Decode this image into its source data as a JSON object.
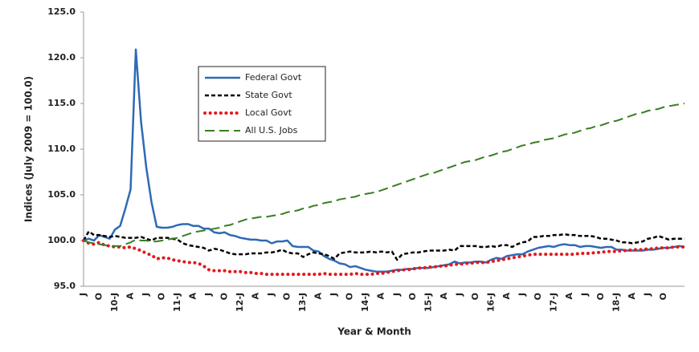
{
  "chart_data": {
    "type": "line",
    "y_label": "Indices (July 2009 = 100.0)",
    "x_label": "Year & Month",
    "categories": [
      "J",
      null,
      null,
      "O",
      null,
      null,
      "10-J",
      null,
      null,
      "A",
      null,
      null,
      "J",
      null,
      null,
      "O",
      null,
      null,
      "11-J",
      null,
      null,
      "A",
      null,
      null,
      "J",
      null,
      null,
      "O",
      null,
      null,
      "12-J",
      null,
      null,
      "A",
      null,
      null,
      "J",
      null,
      null,
      "O",
      null,
      null,
      "13-J",
      null,
      null,
      "A",
      null,
      null,
      "J",
      null,
      null,
      "O",
      null,
      null,
      "14-J",
      null,
      null,
      "A",
      null,
      null,
      "J",
      null,
      null,
      "O",
      null,
      null,
      "15-J",
      null,
      null,
      "A",
      null,
      null,
      "J",
      null,
      null,
      "O",
      null,
      null,
      "16-J",
      null,
      null,
      "A",
      null,
      null,
      "J",
      null,
      null,
      "O",
      null,
      null,
      "17-J",
      null,
      null,
      "A",
      null,
      null,
      "J",
      null,
      null,
      "O",
      null,
      null,
      "18-J",
      null,
      null,
      "A",
      null,
      null,
      "J",
      null,
      null,
      "O",
      null,
      null,
      null,
      null
    ],
    "series": [
      {
        "name": "Federal Govt",
        "color": "#2e6ab5",
        "style": "solid",
        "values": [
          100,
          100.2,
          100,
          100.6,
          100.4,
          100.2,
          101.2,
          101.6,
          103.5,
          105.6,
          120.9,
          113,
          108,
          104.2,
          101.5,
          101.4,
          101.4,
          101.5,
          101.7,
          101.8,
          101.8,
          101.6,
          101.6,
          101.3,
          101.3,
          100.9,
          100.8,
          100.9,
          100.6,
          100.5,
          100.3,
          100.2,
          100.1,
          100.1,
          100.0,
          100.0,
          99.7,
          99.9,
          99.9,
          100.0,
          99.4,
          99.3,
          99.3,
          99.3,
          98.9,
          98.8,
          98.3,
          98.0,
          97.8,
          97.5,
          97.4,
          97.1,
          97.2,
          97.0,
          96.8,
          96.7,
          96.6,
          96.6,
          96.6,
          96.7,
          96.8,
          96.8,
          96.9,
          96.9,
          97.0,
          97.0,
          97.0,
          97.1,
          97.2,
          97.3,
          97.4,
          97.7,
          97.5,
          97.6,
          97.6,
          97.7,
          97.7,
          97.6,
          97.9,
          98.1,
          98.0,
          98.3,
          98.4,
          98.5,
          98.5,
          98.8,
          99.0,
          99.2,
          99.3,
          99.4,
          99.3,
          99.5,
          99.6,
          99.5,
          99.5,
          99.3,
          99.4,
          99.4,
          99.3,
          99.2,
          99.3,
          99.3,
          99.0,
          99.0,
          98.9,
          98.9,
          98.9,
          98.9,
          99.0,
          99.0,
          99.1,
          99.2,
          99.2,
          99.3,
          99.4,
          99.3
        ]
      },
      {
        "name": "State Govt",
        "color": "#000000",
        "style": "dashed",
        "values": [
          100,
          101,
          100.6,
          100.6,
          100.5,
          100.4,
          100.5,
          100.4,
          100.3,
          100.3,
          100.3,
          100.4,
          100.2,
          100.0,
          100.3,
          100.3,
          100.3,
          100.2,
          100.1,
          99.7,
          99.5,
          99.4,
          99.3,
          99.2,
          98.9,
          99.1,
          99.0,
          98.8,
          98.6,
          98.5,
          98.5,
          98.5,
          98.6,
          98.6,
          98.6,
          98.7,
          98.7,
          98.8,
          99.0,
          98.7,
          98.6,
          98.6,
          98.2,
          98.5,
          98.7,
          98.6,
          98.5,
          98.3,
          98.0,
          98.6,
          98.7,
          98.8,
          98.7,
          98.7,
          98.7,
          98.8,
          98.7,
          98.8,
          98.7,
          98.8,
          97.9,
          98.5,
          98.6,
          98.7,
          98.7,
          98.8,
          98.9,
          98.9,
          98.9,
          98.9,
          99.0,
          98.9,
          99.4,
          99.4,
          99.4,
          99.4,
          99.3,
          99.3,
          99.4,
          99.3,
          99.5,
          99.5,
          99.3,
          99.6,
          99.8,
          99.9,
          100.4,
          100.4,
          100.5,
          100.5,
          100.6,
          100.6,
          100.7,
          100.6,
          100.6,
          100.5,
          100.5,
          100.5,
          100.4,
          100.2,
          100.2,
          100.1,
          100.0,
          99.8,
          99.8,
          99.7,
          99.8,
          99.9,
          100.2,
          100.3,
          100.5,
          100.3,
          100.1,
          100.2,
          100.2,
          100.2
        ]
      },
      {
        "name": "Local Govt",
        "color": "#e31a1c",
        "style": "dotted",
        "values": [
          100,
          99.7,
          99.6,
          99.8,
          99.5,
          99.4,
          99.3,
          99.3,
          99.2,
          99.3,
          99.1,
          98.9,
          98.6,
          98.4,
          98.0,
          98.1,
          98.1,
          97.9,
          97.8,
          97.7,
          97.6,
          97.6,
          97.5,
          97.2,
          96.8,
          96.7,
          96.7,
          96.7,
          96.6,
          96.6,
          96.6,
          96.5,
          96.5,
          96.4,
          96.4,
          96.3,
          96.3,
          96.3,
          96.3,
          96.3,
          96.3,
          96.3,
          96.3,
          96.3,
          96.3,
          96.3,
          96.4,
          96.3,
          96.3,
          96.3,
          96.3,
          96.3,
          96.4,
          96.3,
          96.3,
          96.3,
          96.4,
          96.4,
          96.5,
          96.6,
          96.7,
          96.8,
          96.8,
          96.9,
          97.0,
          97.0,
          97.1,
          97.1,
          97.2,
          97.2,
          97.3,
          97.4,
          97.4,
          97.5,
          97.5,
          97.6,
          97.6,
          97.6,
          97.7,
          97.8,
          97.9,
          98.0,
          98.1,
          98.2,
          98.3,
          98.4,
          98.5,
          98.5,
          98.5,
          98.5,
          98.5,
          98.5,
          98.5,
          98.5,
          98.5,
          98.6,
          98.6,
          98.6,
          98.7,
          98.7,
          98.8,
          98.8,
          98.8,
          98.9,
          98.9,
          99.0,
          99.0,
          99.0,
          99.1,
          99.1,
          99.2,
          99.2,
          99.2,
          99.3,
          99.3,
          99.3
        ]
      },
      {
        "name": "All U.S. Jobs",
        "color": "#3a7d22",
        "style": "longdash",
        "values": [
          100,
          99.8,
          99.7,
          99.6,
          99.5,
          99.4,
          99.4,
          99.4,
          99.6,
          99.8,
          100.1,
          100.0,
          100.0,
          99.9,
          99.9,
          100.0,
          100.1,
          100.2,
          100.3,
          100.5,
          100.7,
          100.9,
          101.0,
          101.1,
          101.2,
          101.3,
          101.4,
          101.6,
          101.7,
          101.9,
          102.1,
          102.3,
          102.4,
          102.5,
          102.6,
          102.6,
          102.7,
          102.8,
          102.9,
          103.1,
          103.2,
          103.3,
          103.5,
          103.6,
          103.8,
          103.9,
          104.1,
          104.2,
          104.3,
          104.5,
          104.6,
          104.7,
          104.8,
          105.0,
          105.1,
          105.2,
          105.3,
          105.5,
          105.7,
          105.9,
          106.1,
          106.3,
          106.5,
          106.7,
          106.9,
          107.1,
          107.3,
          107.4,
          107.6,
          107.8,
          108.0,
          108.2,
          108.4,
          108.6,
          108.7,
          108.8,
          109.0,
          109.2,
          109.3,
          109.5,
          109.7,
          109.8,
          110.0,
          110.2,
          110.4,
          110.5,
          110.7,
          110.8,
          111.0,
          111.1,
          111.2,
          111.4,
          111.6,
          111.7,
          111.8,
          112.0,
          112.2,
          112.3,
          112.5,
          112.6,
          112.8,
          113.0,
          113.1,
          113.3,
          113.5,
          113.7,
          113.9,
          114.0,
          114.2,
          114.3,
          114.4,
          114.6,
          114.7,
          114.8,
          114.9,
          115.0
        ]
      }
    ],
    "ylim": [
      95,
      125
    ],
    "yticks": [
      {
        "value": 95,
        "label": "95.0"
      },
      {
        "value": 100,
        "label": "100.0"
      },
      {
        "value": 105,
        "label": "105.0"
      },
      {
        "value": 110,
        "label": "110.0"
      },
      {
        "value": 115,
        "label": "115.0"
      },
      {
        "value": 120,
        "label": "120.0"
      },
      {
        "value": 125,
        "label": "125.0"
      }
    ],
    "grid": false,
    "legend": "upper-left"
  }
}
